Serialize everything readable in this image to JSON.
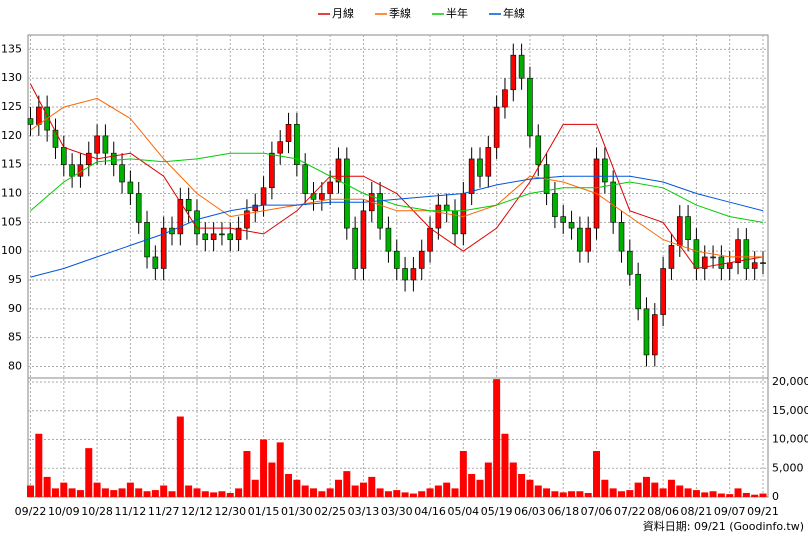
{
  "chart_data": [
    {
      "type": "candlestick",
      "up_color": "#ff0000",
      "down_color": "#00b000",
      "grid": true,
      "legend": "top",
      "xlim": [
        -0.3,
        88.6
      ],
      "ylim": [
        78,
        137.5
      ],
      "yticks": [
        80,
        85,
        90,
        95,
        100,
        105,
        110,
        115,
        120,
        125,
        130,
        135
      ],
      "open": [
        123,
        122,
        125,
        121,
        118,
        115,
        113,
        115,
        117,
        120,
        117,
        115,
        112,
        110,
        105,
        99,
        97,
        104,
        103,
        109,
        107,
        103,
        102,
        103,
        103,
        102,
        104,
        107,
        108,
        111,
        117,
        119,
        122,
        115,
        110,
        109,
        110,
        112,
        116,
        104,
        97,
        107,
        110,
        104,
        100,
        97,
        95,
        97,
        100,
        104,
        108,
        107,
        103,
        110,
        116,
        113,
        118,
        125,
        128,
        134,
        130,
        120,
        115,
        110,
        106,
        105,
        104,
        100,
        104,
        116,
        112,
        105,
        100,
        96,
        90,
        82,
        89,
        97,
        101,
        106,
        102,
        97,
        99,
        99,
        97,
        98,
        102,
        97,
        98
      ],
      "high": [
        125,
        127,
        127,
        123,
        120,
        117,
        117,
        119,
        122,
        122,
        119,
        117,
        114,
        112,
        107,
        101,
        106,
        106,
        111,
        111,
        109,
        105,
        105,
        105,
        105,
        106,
        109,
        110,
        113,
        119,
        121,
        124,
        124,
        117,
        112,
        112,
        114,
        118,
        118,
        106,
        109,
        112,
        112,
        106,
        102,
        99,
        99,
        102,
        106,
        110,
        110,
        109,
        112,
        118,
        118,
        120,
        127,
        130,
        136,
        136,
        132,
        122,
        117,
        112,
        108,
        107,
        106,
        106,
        118,
        118,
        114,
        107,
        102,
        98,
        92,
        91,
        99,
        103,
        108,
        108,
        104,
        101,
        101,
        101,
        100,
        104,
        104,
        100,
        100
      ],
      "low": [
        120,
        120,
        119,
        116,
        113,
        111,
        111,
        113,
        115,
        115,
        113,
        110,
        108,
        103,
        97,
        95,
        95,
        101,
        101,
        105,
        101,
        100,
        100,
        101,
        100,
        100,
        102,
        105,
        106,
        109,
        115,
        117,
        113,
        108,
        107,
        107,
        108,
        110,
        102,
        95,
        95,
        105,
        102,
        98,
        95,
        93,
        93,
        95,
        98,
        102,
        105,
        101,
        101,
        108,
        111,
        111,
        116,
        123,
        126,
        128,
        118,
        113,
        108,
        104,
        103,
        102,
        98,
        98,
        102,
        110,
        103,
        98,
        94,
        88,
        80,
        80,
        87,
        95,
        99,
        100,
        95,
        95,
        97,
        95,
        95,
        96,
        95,
        95,
        96
      ],
      "close": [
        122,
        125,
        121,
        118,
        115,
        113,
        115,
        117,
        120,
        117,
        115,
        112,
        110,
        105,
        99,
        97,
        104,
        103,
        109,
        107,
        103,
        102,
        103,
        103,
        102,
        104,
        107,
        108,
        111,
        117,
        119,
        122,
        115,
        110,
        109,
        110,
        112,
        116,
        104,
        97,
        107,
        110,
        104,
        100,
        97,
        95,
        97,
        100,
        104,
        108,
        107,
        103,
        110,
        116,
        113,
        118,
        125,
        128,
        134,
        130,
        120,
        115,
        110,
        106,
        105,
        104,
        100,
        104,
        116,
        112,
        105,
        100,
        96,
        90,
        82,
        89,
        97,
        101,
        106,
        102,
        97,
        99,
        99,
        97,
        98,
        102,
        97,
        98,
        98
      ],
      "series": [
        {
          "name": "月線",
          "color": "#dd0000",
          "x": [
            0,
            4,
            8,
            12,
            16,
            20,
            24,
            28,
            32,
            36,
            40,
            44,
            48,
            52,
            56,
            60,
            64,
            68,
            72,
            76,
            80,
            84,
            88
          ],
          "values": [
            129,
            118,
            116,
            117,
            113,
            104,
            104,
            103,
            107,
            113,
            113,
            110,
            104,
            100,
            104,
            112,
            122,
            122,
            107,
            105,
            97,
            98,
            99
          ]
        },
        {
          "name": "季線",
          "color": "#ff6600",
          "x": [
            0,
            4,
            8,
            12,
            16,
            20,
            24,
            28,
            32,
            36,
            40,
            44,
            48,
            52,
            56,
            60,
            64,
            68,
            72,
            76,
            80,
            84,
            88
          ],
          "values": [
            121,
            125,
            126.5,
            123,
            116,
            110,
            106,
            107,
            108,
            109,
            109,
            107,
            107,
            106,
            108,
            113,
            112,
            110,
            106,
            102,
            100,
            99,
            99
          ]
        },
        {
          "name": "半年",
          "color": "#00cc00",
          "x": [
            0,
            4,
            8,
            12,
            16,
            20,
            24,
            28,
            32,
            36,
            40,
            44,
            48,
            52,
            56,
            60,
            64,
            68,
            72,
            76,
            80,
            84,
            88
          ],
          "values": [
            107,
            112,
            115.5,
            116,
            115.5,
            116,
            117,
            117,
            116,
            113,
            110,
            108,
            107,
            107,
            108,
            110,
            111,
            111,
            112,
            111,
            108,
            106,
            105
          ]
        },
        {
          "name": "年線",
          "color": "#0055dd",
          "x": [
            0,
            4,
            8,
            12,
            16,
            20,
            24,
            28,
            32,
            36,
            40,
            44,
            48,
            52,
            56,
            60,
            64,
            68,
            72,
            76,
            80,
            84,
            88
          ],
          "values": [
            95.5,
            97,
            99,
            101,
            103,
            105.5,
            107,
            108,
            108,
            108.5,
            108.5,
            109,
            109.5,
            110,
            111.5,
            112.5,
            113,
            113,
            113,
            112,
            110,
            108.5,
            107
          ]
        }
      ]
    },
    {
      "type": "bar",
      "color": "#ff0000",
      "grid": true,
      "xlim": [
        -0.3,
        88.6
      ],
      "ylim": [
        0,
        20700
      ],
      "yticks": [
        0,
        {
          "value": 5000,
          "label": "5,000"
        },
        {
          "value": 10000,
          "label": "10,000"
        },
        {
          "value": 15000,
          "label": "15,000"
        },
        {
          "value": 20000,
          "label": "20,000"
        }
      ],
      "categories": [
        "09/22",
        null,
        null,
        null,
        "10/09",
        null,
        null,
        null,
        "10/28",
        null,
        null,
        null,
        "11/12",
        null,
        null,
        null,
        "11/27",
        null,
        null,
        null,
        "12/12",
        null,
        null,
        null,
        "12/30",
        null,
        null,
        null,
        "01/15",
        null,
        null,
        null,
        "01/30",
        null,
        null,
        null,
        "02/25",
        null,
        null,
        null,
        "03/13",
        null,
        null,
        null,
        "03/30",
        null,
        null,
        null,
        "04/16",
        null,
        null,
        null,
        "05/04",
        null,
        null,
        null,
        "05/19",
        null,
        null,
        null,
        "06/03",
        null,
        null,
        null,
        "06/18",
        null,
        null,
        null,
        "07/06",
        null,
        null,
        null,
        "07/22",
        null,
        null,
        null,
        "08/06",
        null,
        null,
        null,
        "08/21",
        null,
        null,
        null,
        "09/07",
        null,
        null,
        null,
        "09/21"
      ],
      "values": [
        2000,
        11000,
        3500,
        1500,
        2500,
        1500,
        1200,
        8500,
        2500,
        1500,
        1200,
        1500,
        2500,
        1500,
        1000,
        1200,
        2000,
        1000,
        14000,
        2000,
        1500,
        1000,
        800,
        1000,
        700,
        1500,
        8000,
        3000,
        10000,
        6000,
        9500,
        4000,
        3000,
        2000,
        1500,
        1000,
        1500,
        3000,
        4500,
        2000,
        2500,
        3500,
        1500,
        1000,
        1200,
        800,
        600,
        1000,
        1500,
        2000,
        2500,
        1500,
        8000,
        4000,
        3000,
        6000,
        20500,
        11000,
        6000,
        4000,
        3000,
        2000,
        1500,
        1000,
        800,
        1000,
        1000,
        700,
        8000,
        3000,
        1500,
        1000,
        1200,
        2500,
        3500,
        2500,
        1500,
        3000,
        2000,
        1500,
        1200,
        800,
        1000,
        600,
        500,
        1500,
        700,
        400,
        600
      ],
      "source": "資料日期: 09/21 (Goodinfo.tw)"
    }
  ]
}
